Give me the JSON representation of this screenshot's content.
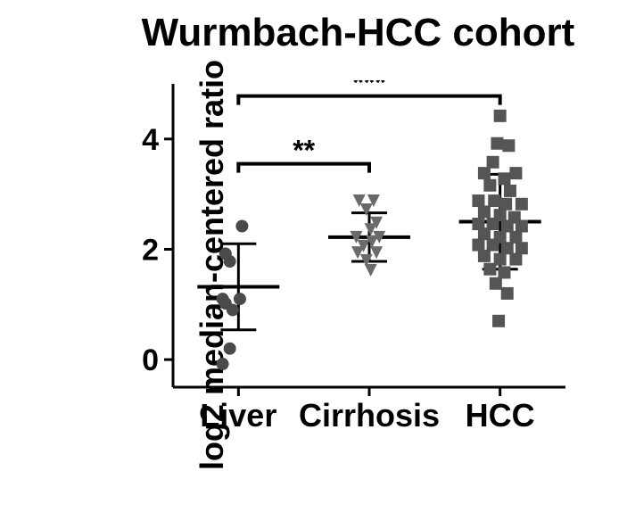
{
  "chart": {
    "type": "scatter_dotplot_with_error",
    "title": "Wurmbach-HCC cohort",
    "ylabel": "log2 median-centered ratio",
    "ylim": [
      -0.5,
      5
    ],
    "yticks": [
      0,
      2,
      4
    ],
    "categories": [
      "Liver",
      "Cirrhosis",
      "HCC"
    ],
    "background_color": "#ffffff",
    "axis_color": "#000000",
    "axis_width": 3,
    "title_fontsize": 44,
    "label_fontsize": 36,
    "tick_fontsize": 34,
    "groups": {
      "Liver": {
        "x": 1,
        "mean": 1.32,
        "sd": 0.78,
        "marker": "circle",
        "marker_size": 7,
        "marker_color": "#4a4a4a",
        "points": [
          {
            "xo": 0.05,
            "y": 2.42
          },
          {
            "xo": -0.18,
            "y": 1.92
          },
          {
            "xo": -0.12,
            "y": 1.78
          },
          {
            "xo": -0.22,
            "y": 1.1
          },
          {
            "xo": 0.02,
            "y": 1.1
          },
          {
            "xo": -0.18,
            "y": 1.02
          },
          {
            "xo": -0.08,
            "y": 0.9
          },
          {
            "xo": -0.12,
            "y": 0.2
          },
          {
            "xo": -0.22,
            "y": -0.08
          }
        ]
      },
      "Cirrhosis": {
        "x": 2,
        "mean": 2.22,
        "sd": 0.44,
        "marker": "dtriangle",
        "marker_size": 7,
        "marker_color": "#6a6a6a",
        "points": [
          {
            "xo": -0.14,
            "y": 2.88
          },
          {
            "xo": 0.06,
            "y": 2.88
          },
          {
            "xo": -0.04,
            "y": 2.72
          },
          {
            "xo": 0.1,
            "y": 2.48
          },
          {
            "xo": 0.02,
            "y": 2.36
          },
          {
            "xo": -0.18,
            "y": 2.22
          },
          {
            "xo": 0.14,
            "y": 2.22
          },
          {
            "xo": 0.04,
            "y": 2.14
          },
          {
            "xo": -0.08,
            "y": 2.06
          },
          {
            "xo": -0.16,
            "y": 1.94
          },
          {
            "xo": 0.1,
            "y": 1.94
          },
          {
            "xo": -0.04,
            "y": 1.8
          },
          {
            "xo": 0.02,
            "y": 1.62
          }
        ]
      },
      "HCC": {
        "x": 3,
        "mean": 2.5,
        "sd": 0.86,
        "marker": "square",
        "marker_size": 7,
        "marker_color": "#555555",
        "points": [
          {
            "xo": 0.0,
            "y": 4.42
          },
          {
            "xo": -0.04,
            "y": 3.92
          },
          {
            "xo": 0.12,
            "y": 3.88
          },
          {
            "xo": -0.1,
            "y": 3.58
          },
          {
            "xo": -0.22,
            "y": 3.38
          },
          {
            "xo": 0.22,
            "y": 3.38
          },
          {
            "xo": 0.06,
            "y": 3.28
          },
          {
            "xo": -0.14,
            "y": 3.16
          },
          {
            "xo": 0.14,
            "y": 3.06
          },
          {
            "xo": -0.3,
            "y": 2.88
          },
          {
            "xo": -0.08,
            "y": 2.88
          },
          {
            "xo": 0.08,
            "y": 2.82
          },
          {
            "xo": 0.3,
            "y": 2.82
          },
          {
            "xo": -0.22,
            "y": 2.68
          },
          {
            "xo": 0.0,
            "y": 2.62
          },
          {
            "xo": 0.2,
            "y": 2.58
          },
          {
            "xo": -0.3,
            "y": 2.46
          },
          {
            "xo": -0.1,
            "y": 2.46
          },
          {
            "xo": 0.1,
            "y": 2.42
          },
          {
            "xo": 0.3,
            "y": 2.42
          },
          {
            "xo": -0.22,
            "y": 2.28
          },
          {
            "xo": 0.0,
            "y": 2.22
          },
          {
            "xo": 0.22,
            "y": 2.22
          },
          {
            "xo": -0.3,
            "y": 2.08
          },
          {
            "xo": -0.1,
            "y": 2.08
          },
          {
            "xo": 0.1,
            "y": 2.02
          },
          {
            "xo": 0.3,
            "y": 2.02
          },
          {
            "xo": -0.22,
            "y": 1.88
          },
          {
            "xo": 0.0,
            "y": 1.82
          },
          {
            "xo": 0.22,
            "y": 1.82
          },
          {
            "xo": -0.14,
            "y": 1.64
          },
          {
            "xo": 0.06,
            "y": 1.58
          },
          {
            "xo": -0.06,
            "y": 1.38
          },
          {
            "xo": 0.1,
            "y": 1.2
          },
          {
            "xo": -0.02,
            "y": 0.7
          }
        ]
      }
    },
    "significance": [
      {
        "from": "Liver",
        "to": "Cirrhosis",
        "label": "**",
        "y": 3.55
      },
      {
        "from": "Liver",
        "to": "HCC",
        "label": "***",
        "y": 4.78
      }
    ]
  }
}
